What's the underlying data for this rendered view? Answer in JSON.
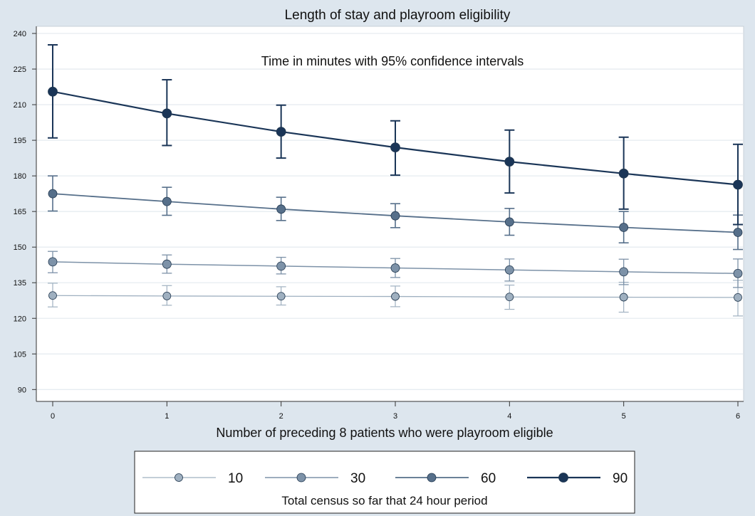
{
  "chart_data": {
    "type": "line",
    "title": "Length of stay and playroom eligibility",
    "annotation": "Time in minutes with 95% confidence intervals",
    "xlabel": "Number of preceding 8 patients who were playroom eligible",
    "ylabel": "",
    "x": [
      0,
      1,
      2,
      3,
      4,
      5,
      6
    ],
    "xticks": [
      "0",
      "1",
      "2",
      "3",
      "4",
      "5",
      "6"
    ],
    "xlim": [
      0,
      6
    ],
    "ylim": [
      85,
      243
    ],
    "yticks": [
      "90",
      "105",
      "120",
      "135",
      "150",
      "165",
      "180",
      "195",
      "210",
      "225",
      "240"
    ],
    "grid": true,
    "error_bars": "95% confidence intervals",
    "legend": {
      "title": "Total census so far that 24 hour period",
      "placement": "bottom"
    },
    "series": [
      {
        "name": "10",
        "color": "#9fb0c0",
        "values": [
          129.6,
          129.4,
          129.3,
          129.2,
          129.0,
          128.9,
          128.8
        ],
        "lower": [
          124.8,
          125.5,
          125.6,
          124.9,
          123.8,
          122.6,
          121.0
        ],
        "upper": [
          134.8,
          133.8,
          133.3,
          133.6,
          134.0,
          135.2,
          136.0
        ]
      },
      {
        "name": "30",
        "color": "#7d92a8",
        "values": [
          143.8,
          142.8,
          142.0,
          141.2,
          140.4,
          139.6,
          138.9
        ],
        "lower": [
          139.2,
          139.0,
          138.7,
          137.2,
          135.7,
          134.2,
          133.0
        ],
        "upper": [
          148.2,
          146.7,
          145.7,
          145.2,
          145.0,
          144.9,
          145.0
        ]
      },
      {
        "name": "60",
        "color": "#566f8a",
        "values": [
          172.5,
          169.2,
          166.0,
          163.2,
          160.6,
          158.3,
          156.2
        ],
        "lower": [
          165.2,
          163.4,
          161.2,
          158.2,
          155.0,
          151.8,
          149.0
        ],
        "upper": [
          180.0,
          175.2,
          171.0,
          168.3,
          166.3,
          165.0,
          163.5
        ]
      },
      {
        "name": "90",
        "color": "#1a3557",
        "values": [
          215.5,
          206.3,
          198.6,
          192.0,
          186.0,
          181.0,
          176.3
        ],
        "lower": [
          196.0,
          192.8,
          187.5,
          180.3,
          172.8,
          166.0,
          159.5
        ],
        "upper": [
          235.2,
          220.5,
          209.8,
          203.2,
          199.3,
          196.3,
          193.3
        ]
      }
    ]
  }
}
